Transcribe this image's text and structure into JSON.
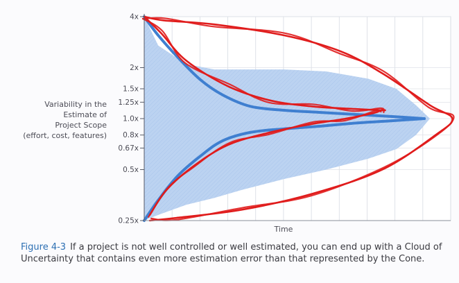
{
  "chart_data": {
    "type": "area",
    "title": "",
    "xlabel": "Time",
    "ylabel_lines": [
      "Variability in the",
      "Estimate of",
      "Project Scope",
      "(effort, cost, features)"
    ],
    "y_scale": "log",
    "ylim": [
      0.25,
      4
    ],
    "xlim": [
      0,
      1
    ],
    "grid": true,
    "y_ticks": [
      {
        "value": 4,
        "label": "4x"
      },
      {
        "value": 2,
        "label": "2x"
      },
      {
        "value": 1.5,
        "label": "1.5x"
      },
      {
        "value": 1.25,
        "label": "1.25x"
      },
      {
        "value": 1.0,
        "label": "1.0x"
      },
      {
        "value": 0.8,
        "label": "0.8x"
      },
      {
        "value": 0.67,
        "label": "0.67x"
      },
      {
        "value": 0.5,
        "label": "0.5x"
      },
      {
        "value": 0.25,
        "label": "0.25x"
      }
    ],
    "series": [
      {
        "name": "",
        "role": "cone-upper",
        "color": "#3f7fd0",
        "x": [
          0,
          0.05,
          0.12,
          0.2,
          0.28,
          0.38,
          0.5,
          0.62,
          0.75,
          0.88,
          1.0
        ],
        "y": [
          4,
          3.1,
          2.3,
          1.7,
          1.38,
          1.18,
          1.12,
          1.09,
          1.06,
          1.03,
          1.0
        ]
      },
      {
        "name": "",
        "role": "cone-lower",
        "color": "#3f7fd0",
        "x": [
          0,
          0.05,
          0.12,
          0.2,
          0.28,
          0.38,
          0.5,
          0.62,
          0.75,
          0.88,
          1.0
        ],
        "y": [
          0.25,
          0.33,
          0.46,
          0.6,
          0.74,
          0.83,
          0.87,
          0.9,
          0.94,
          0.97,
          1.0
        ]
      },
      {
        "name": "",
        "role": "cloud-upper",
        "color": "#bcd3f1",
        "x": [
          0,
          0.05,
          0.15,
          0.25,
          0.35,
          0.5,
          0.65,
          0.8,
          0.9,
          0.97,
          1.02
        ],
        "y": [
          4,
          2.7,
          2.1,
          1.95,
          1.95,
          1.95,
          1.9,
          1.72,
          1.5,
          1.2,
          1.0
        ]
      },
      {
        "name": "",
        "role": "cloud-lower",
        "color": "#bcd3f1",
        "x": [
          0,
          0.05,
          0.15,
          0.25,
          0.35,
          0.5,
          0.65,
          0.8,
          0.9,
          0.97,
          1.02
        ],
        "y": [
          0.25,
          0.27,
          0.31,
          0.34,
          0.38,
          0.44,
          0.5,
          0.58,
          0.66,
          0.8,
          1.0
        ]
      }
    ],
    "annotations": [
      {
        "kind": "hand-drawn-outline",
        "color": "#e01c1c",
        "x": [
          0,
          0.07,
          0.25,
          0.5,
          0.7,
          0.85,
          1.02,
          1.1,
          1.04,
          0.85,
          0.6,
          0.35,
          0.12,
          0.02
        ],
        "y": [
          4,
          3.8,
          3.6,
          3.1,
          2.5,
          1.85,
          1.2,
          1.0,
          0.8,
          0.5,
          0.36,
          0.29,
          0.26,
          0.25
        ]
      },
      {
        "kind": "hand-drawn-outline",
        "color": "#e01c1c",
        "x": [
          0,
          0.06,
          0.15,
          0.3,
          0.45,
          0.6,
          0.75,
          0.84,
          0.86
        ],
        "y": [
          4,
          3.2,
          2.2,
          1.55,
          1.28,
          1.18,
          1.14,
          1.12,
          1.12
        ]
      },
      {
        "kind": "hand-drawn-outline",
        "color": "#e01c1c",
        "x": [
          0.02,
          0.08,
          0.18,
          0.3,
          0.45,
          0.6,
          0.72,
          0.82,
          0.85
        ],
        "y": [
          0.27,
          0.38,
          0.53,
          0.7,
          0.83,
          0.93,
          1.0,
          1.08,
          1.13
        ]
      }
    ]
  },
  "caption": {
    "figure_label": "Figure 4-3",
    "text": "If a project is not well controlled or well estimated, you can end up with a Cloud of Uncertainty that contains even more estimation error than that represented by the Cone."
  }
}
